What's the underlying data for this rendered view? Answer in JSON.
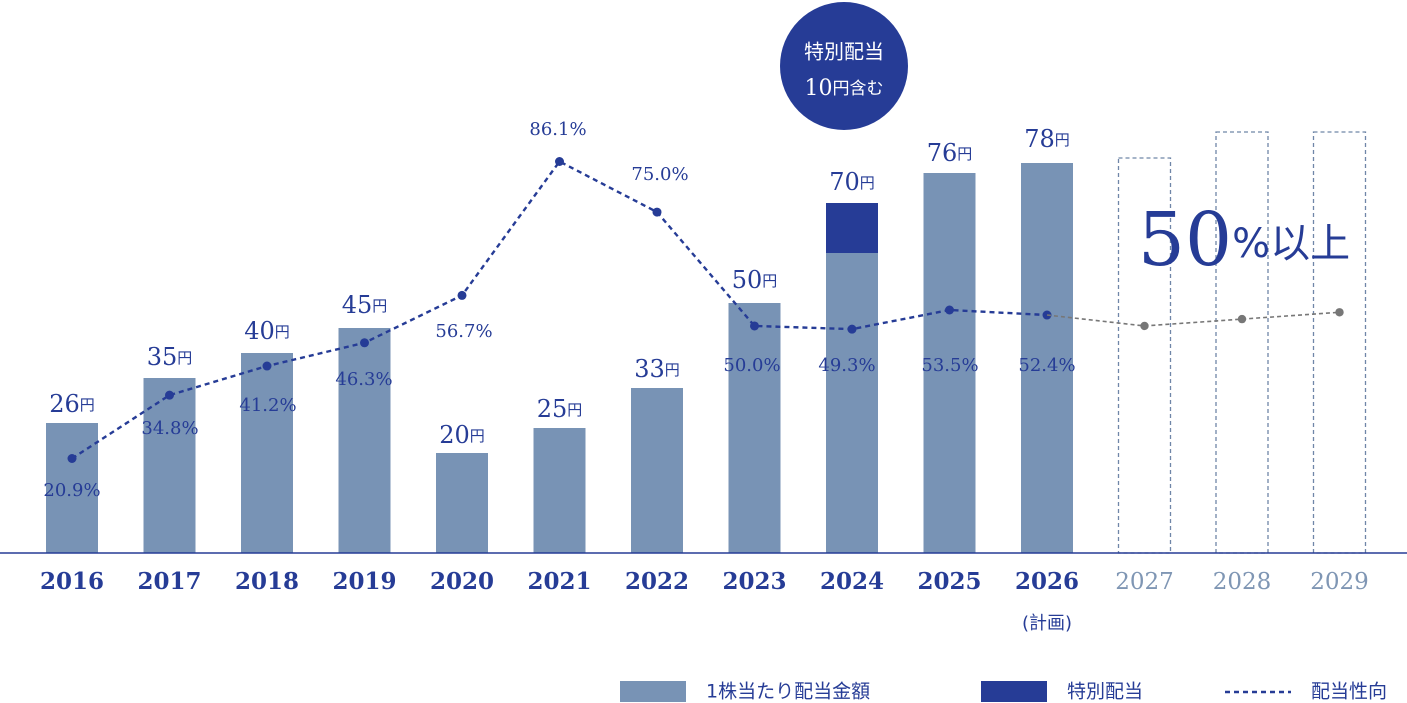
{
  "chart_data": {
    "type": "bar",
    "categories": [
      "2016",
      "2017",
      "2018",
      "2019",
      "2020",
      "2021",
      "2022",
      "2023",
      "2024",
      "2025",
      "2026",
      "2027",
      "2028",
      "2029"
    ],
    "category_sublabels": {
      "2026": "(計画)"
    },
    "yen_unit": "円",
    "series": [
      {
        "name": "1株当たり配当金額",
        "values": [
          26,
          35,
          40,
          45,
          20,
          25,
          33,
          50,
          60,
          76,
          78,
          null,
          null,
          null
        ],
        "color": "#7893b5"
      },
      {
        "name": "特別配当",
        "values": [
          0,
          0,
          0,
          0,
          0,
          0,
          0,
          0,
          10,
          0,
          0,
          null,
          null,
          null
        ],
        "color": "#263c96"
      }
    ],
    "bar_total_labels": [
      {
        "num": "26",
        "unit": "円"
      },
      {
        "num": "35",
        "unit": "円"
      },
      {
        "num": "40",
        "unit": "円"
      },
      {
        "num": "45",
        "unit": "円"
      },
      {
        "num": "20",
        "unit": "円"
      },
      {
        "num": "25",
        "unit": "円"
      },
      {
        "num": "33",
        "unit": "円"
      },
      {
        "num": "50",
        "unit": "円"
      },
      {
        "num": "70",
        "unit": "円"
      },
      {
        "num": "76",
        "unit": "円"
      },
      {
        "num": "78",
        "unit": "円"
      },
      null,
      null,
      null
    ],
    "payout_ratio": {
      "name": "配当性向",
      "values": [
        20.9,
        34.8,
        41.2,
        46.3,
        56.7,
        86.1,
        75.0,
        50.0,
        49.3,
        53.5,
        52.4
      ],
      "labels": [
        "20.9%",
        "34.8%",
        "41.2%",
        "46.3%",
        "56.7%",
        "86.1%",
        "75.0%",
        "50.0%",
        "49.3%",
        "53.5%",
        "52.4%"
      ],
      "color": "#263c96"
    },
    "future_target": {
      "years": [
        "2027",
        "2028",
        "2029"
      ],
      "label_num": "50",
      "label_suffix": "%以上",
      "trend_points": [
        50.0,
        51.5,
        53.0
      ],
      "color": "#777777"
    },
    "callout": {
      "line1": "特別配当",
      "line2_num": "10",
      "line2_suffix": "円含む",
      "color": "#263c96"
    },
    "legend": [
      {
        "label": "1株当たり配当金額",
        "type": "box",
        "color": "#7893b5"
      },
      {
        "label": "特別配当",
        "type": "box",
        "color": "#263c96"
      },
      {
        "label": "配当性向",
        "type": "dash",
        "color": "#263c96"
      }
    ],
    "legend_position": "bottom-right",
    "colors": {
      "axis": "#263c96",
      "dark_text": "#263c96",
      "future_text": "#7f96b4",
      "future_outline": "#6f86a8"
    },
    "grid": false
  }
}
